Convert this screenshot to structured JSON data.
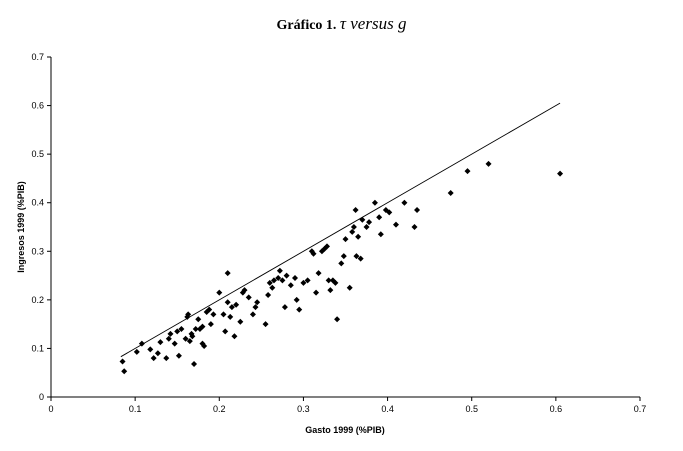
{
  "chart_data": {
    "type": "scatter",
    "title_prefix": "Gráfico 1.",
    "title_math": "τ versus g",
    "xlabel": "Gasto 1999 (%PIB)",
    "ylabel": "Ingresos 1999 (%PIB)",
    "xlim": [
      0,
      0.7
    ],
    "ylim": [
      0,
      0.7
    ],
    "xticks": [
      "0",
      "0.1",
      "0.2",
      "0.3",
      "0.4",
      "0.5",
      "0.6",
      "0.7"
    ],
    "yticks": [
      "0",
      "0.1",
      "0.2",
      "0.3",
      "0.4",
      "0.5",
      "0.6",
      "0.7"
    ],
    "grid": false,
    "marker": "diamond",
    "marker_color": "#000000",
    "reference_line": {
      "from": [
        0.083,
        0.083
      ],
      "to": [
        0.605,
        0.605
      ]
    },
    "points": [
      [
        0.085,
        0.073
      ],
      [
        0.087,
        0.053
      ],
      [
        0.102,
        0.093
      ],
      [
        0.108,
        0.11
      ],
      [
        0.118,
        0.098
      ],
      [
        0.122,
        0.08
      ],
      [
        0.127,
        0.09
      ],
      [
        0.13,
        0.113
      ],
      [
        0.137,
        0.08
      ],
      [
        0.14,
        0.12
      ],
      [
        0.142,
        0.13
      ],
      [
        0.147,
        0.11
      ],
      [
        0.15,
        0.135
      ],
      [
        0.152,
        0.085
      ],
      [
        0.155,
        0.14
      ],
      [
        0.16,
        0.12
      ],
      [
        0.162,
        0.165
      ],
      [
        0.163,
        0.17
      ],
      [
        0.165,
        0.115
      ],
      [
        0.167,
        0.13
      ],
      [
        0.168,
        0.125
      ],
      [
        0.17,
        0.068
      ],
      [
        0.172,
        0.14
      ],
      [
        0.175,
        0.16
      ],
      [
        0.177,
        0.14
      ],
      [
        0.18,
        0.11
      ],
      [
        0.18,
        0.145
      ],
      [
        0.182,
        0.105
      ],
      [
        0.185,
        0.175
      ],
      [
        0.188,
        0.18
      ],
      [
        0.19,
        0.15
      ],
      [
        0.193,
        0.17
      ],
      [
        0.2,
        0.215
      ],
      [
        0.205,
        0.17
      ],
      [
        0.207,
        0.135
      ],
      [
        0.21,
        0.255
      ],
      [
        0.21,
        0.195
      ],
      [
        0.213,
        0.165
      ],
      [
        0.215,
        0.185
      ],
      [
        0.218,
        0.125
      ],
      [
        0.22,
        0.19
      ],
      [
        0.225,
        0.155
      ],
      [
        0.228,
        0.215
      ],
      [
        0.23,
        0.22
      ],
      [
        0.235,
        0.205
      ],
      [
        0.24,
        0.17
      ],
      [
        0.243,
        0.185
      ],
      [
        0.245,
        0.195
      ],
      [
        0.255,
        0.15
      ],
      [
        0.258,
        0.21
      ],
      [
        0.26,
        0.235
      ],
      [
        0.263,
        0.225
      ],
      [
        0.265,
        0.24
      ],
      [
        0.27,
        0.245
      ],
      [
        0.272,
        0.26
      ],
      [
        0.275,
        0.24
      ],
      [
        0.278,
        0.185
      ],
      [
        0.28,
        0.25
      ],
      [
        0.285,
        0.23
      ],
      [
        0.29,
        0.245
      ],
      [
        0.292,
        0.2
      ],
      [
        0.295,
        0.18
      ],
      [
        0.3,
        0.235
      ],
      [
        0.305,
        0.24
      ],
      [
        0.31,
        0.3
      ],
      [
        0.312,
        0.295
      ],
      [
        0.315,
        0.215
      ],
      [
        0.318,
        0.255
      ],
      [
        0.322,
        0.3
      ],
      [
        0.325,
        0.305
      ],
      [
        0.328,
        0.31
      ],
      [
        0.33,
        0.24
      ],
      [
        0.332,
        0.22
      ],
      [
        0.335,
        0.24
      ],
      [
        0.338,
        0.235
      ],
      [
        0.34,
        0.16
      ],
      [
        0.345,
        0.275
      ],
      [
        0.348,
        0.29
      ],
      [
        0.35,
        0.325
      ],
      [
        0.355,
        0.225
      ],
      [
        0.358,
        0.34
      ],
      [
        0.36,
        0.35
      ],
      [
        0.362,
        0.385
      ],
      [
        0.363,
        0.29
      ],
      [
        0.365,
        0.33
      ],
      [
        0.368,
        0.285
      ],
      [
        0.37,
        0.365
      ],
      [
        0.375,
        0.35
      ],
      [
        0.378,
        0.36
      ],
      [
        0.385,
        0.4
      ],
      [
        0.39,
        0.37
      ],
      [
        0.392,
        0.335
      ],
      [
        0.398,
        0.385
      ],
      [
        0.402,
        0.38
      ],
      [
        0.41,
        0.355
      ],
      [
        0.42,
        0.4
      ],
      [
        0.432,
        0.35
      ],
      [
        0.435,
        0.385
      ],
      [
        0.475,
        0.42
      ],
      [
        0.495,
        0.465
      ],
      [
        0.52,
        0.48
      ],
      [
        0.605,
        0.46
      ]
    ]
  }
}
